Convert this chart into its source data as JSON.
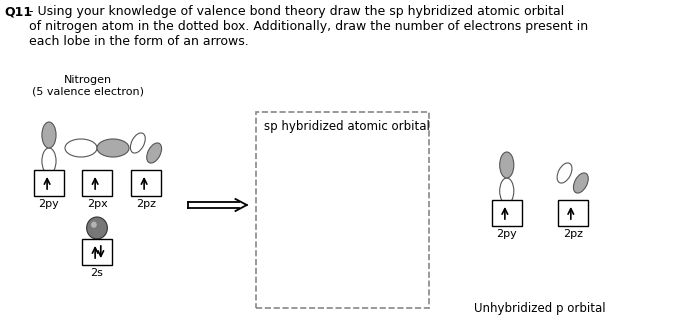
{
  "title_bold": "Q11",
  "title_text": "- Using your knowledge of valence bond theory draw the sp hybridized atomic orbital\nof nitrogen atom in the dotted box. Additionally, draw the number of electrons present in\neach lobe in the form of an arrows.",
  "nitrogen_label": "Nitrogen\n(5 valence electron)",
  "orbital_labels_left": [
    "2py",
    "2px",
    "2pz"
  ],
  "orbital_label_2s": "2s",
  "sp_label": "sp hybridized atomic orbital",
  "unhybridized_label": "Unhybridized p orbital",
  "orbital_labels_right": [
    "2py",
    "2pz"
  ],
  "bg_color": "#ffffff",
  "box_color": "#000000",
  "arrow_color": "#000000",
  "dashed_box_color": "#888888",
  "orbital_fill_shade": "#aaaaaa",
  "orbital_edge": "#555555",
  "sphere_fill": "#777777",
  "sphere_edge": "#333333"
}
